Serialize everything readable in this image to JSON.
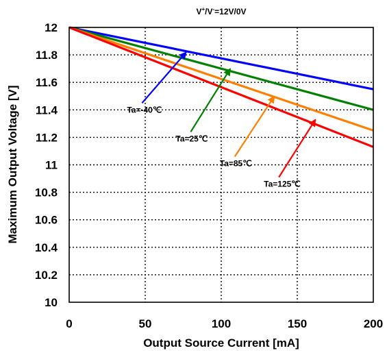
{
  "chart_data": {
    "type": "line",
    "title": "",
    "condition": {
      "v_plus": "V",
      "v_plus_sup": "+",
      "v_minus": "/V",
      "v_minus_sup": "-",
      "value": "=12V/0V"
    },
    "xlabel": "Output Source Current [mA]",
    "ylabel": "Maximum Output Voltage [V]",
    "xlim": [
      0,
      200
    ],
    "ylim": [
      10,
      12
    ],
    "xticks": [
      0,
      50,
      100,
      150,
      200
    ],
    "xtick_labels": [
      "0",
      "50",
      "100",
      "150",
      "200"
    ],
    "yticks": [
      10,
      10.2,
      10.4,
      10.6,
      10.8,
      11,
      11.2,
      11.4,
      11.6,
      11.8,
      12
    ],
    "ytick_labels": [
      "10",
      "10.2",
      "10.4",
      "10.6",
      "10.8",
      "11",
      "11.2",
      "11.4",
      "11.6",
      "11.8",
      "12"
    ],
    "grid": true,
    "series": [
      {
        "label": "Ta=-40℃",
        "color": "#0000ff",
        "x": [
          0,
          200
        ],
        "y": [
          12.0,
          11.55
        ],
        "label_anchor": [
          38,
          11.38
        ],
        "arrow_to": [
          77,
          11.82
        ]
      },
      {
        "label": "Ta=25℃",
        "color": "#008000",
        "x": [
          0,
          200
        ],
        "y": [
          12.0,
          11.4
        ],
        "label_anchor": [
          70,
          11.17
        ],
        "arrow_to": [
          106,
          11.7
        ]
      },
      {
        "label": "Ta=85℃",
        "color": "#ff8000",
        "x": [
          0,
          200
        ],
        "y": [
          12.0,
          11.25
        ],
        "label_anchor": [
          99,
          10.99
        ],
        "arrow_to": [
          135,
          11.5
        ]
      },
      {
        "label": "Ta=125℃",
        "color": "#ff0000",
        "x": [
          0,
          200
        ],
        "y": [
          12.0,
          11.13
        ],
        "label_anchor": [
          128,
          10.84
        ],
        "arrow_to": [
          162,
          11.33
        ]
      }
    ]
  }
}
